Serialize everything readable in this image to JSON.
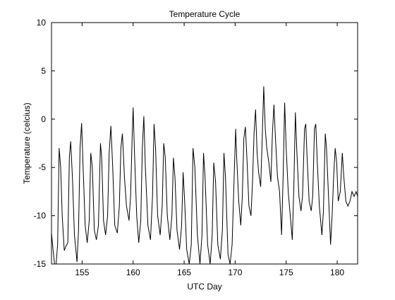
{
  "chart_data": {
    "type": "line",
    "title": "Temperature Cycle",
    "xlabel": "UTC Day",
    "ylabel": "Temperature (celcius)",
    "xlim": [
      152,
      182
    ],
    "ylim": [
      -15,
      10
    ],
    "xticks": [
      155,
      160,
      165,
      170,
      175,
      180
    ],
    "yticks": [
      -15,
      -10,
      -5,
      0,
      5,
      10
    ],
    "grid": false,
    "legend": "none",
    "series": [
      {
        "color": "#000000",
        "points": [
          [
            152.0,
            -11.8
          ],
          [
            152.15,
            -13.5
          ],
          [
            152.3,
            -15.0
          ],
          [
            152.45,
            -15.0
          ],
          [
            152.6,
            -13.0
          ],
          [
            152.75,
            -3.0
          ],
          [
            152.9,
            -5.0
          ],
          [
            153.05,
            -10.0
          ],
          [
            153.25,
            -13.6
          ],
          [
            153.4,
            -13.2
          ],
          [
            153.6,
            -12.8
          ],
          [
            153.75,
            -4.0
          ],
          [
            153.88,
            -2.3
          ],
          [
            154.05,
            -6.0
          ],
          [
            154.25,
            -12.0
          ],
          [
            154.5,
            -14.8
          ],
          [
            154.65,
            -11.5
          ],
          [
            154.8,
            -3.0
          ],
          [
            154.95,
            -0.4
          ],
          [
            155.1,
            -5.0
          ],
          [
            155.3,
            -11.0
          ],
          [
            155.5,
            -12.8
          ],
          [
            155.7,
            -10.5
          ],
          [
            155.85,
            -3.5
          ],
          [
            156.0,
            -5.0
          ],
          [
            156.2,
            -11.5
          ],
          [
            156.4,
            -12.5
          ],
          [
            156.6,
            -11.0
          ],
          [
            156.8,
            -2.5
          ],
          [
            156.92,
            -4.0
          ],
          [
            157.1,
            -10.5
          ],
          [
            157.3,
            -12.0
          ],
          [
            157.5,
            -10.0
          ],
          [
            157.65,
            -3.5
          ],
          [
            157.82,
            -0.7
          ],
          [
            158.0,
            -5.0
          ],
          [
            158.2,
            -11.0
          ],
          [
            158.45,
            -11.8
          ],
          [
            158.65,
            -9.0
          ],
          [
            158.8,
            -3.0
          ],
          [
            158.95,
            -1.5
          ],
          [
            159.15,
            -6.0
          ],
          [
            159.35,
            -9.0
          ],
          [
            159.6,
            -10.5
          ],
          [
            159.75,
            -8.0
          ],
          [
            159.9,
            -2.0
          ],
          [
            160.0,
            1.2
          ],
          [
            160.15,
            -4.0
          ],
          [
            160.35,
            -10.0
          ],
          [
            160.55,
            -12.8
          ],
          [
            160.75,
            -10.5
          ],
          [
            160.9,
            -3.0
          ],
          [
            161.05,
            0.3
          ],
          [
            161.2,
            -5.0
          ],
          [
            161.45,
            -11.0
          ],
          [
            161.7,
            -12.5
          ],
          [
            161.9,
            -8.0
          ],
          [
            162.05,
            -0.5
          ],
          [
            162.2,
            -3.0
          ],
          [
            162.4,
            -10.0
          ],
          [
            162.65,
            -12.0
          ],
          [
            162.85,
            -9.0
          ],
          [
            163.0,
            -2.5
          ],
          [
            163.15,
            -4.0
          ],
          [
            163.35,
            -10.0
          ],
          [
            163.6,
            -12.5
          ],
          [
            163.8,
            -10.0
          ],
          [
            163.95,
            -4.0
          ],
          [
            164.1,
            -6.0
          ],
          [
            164.3,
            -11.5
          ],
          [
            164.55,
            -13.5
          ],
          [
            164.75,
            -11.0
          ],
          [
            164.9,
            -5.5
          ],
          [
            165.05,
            -8.5
          ],
          [
            165.25,
            -13.5
          ],
          [
            165.5,
            -15.0
          ],
          [
            165.7,
            -13.0
          ],
          [
            165.87,
            -3.0
          ],
          [
            166.05,
            -5.0
          ],
          [
            166.3,
            -12.0
          ],
          [
            166.55,
            -15.0
          ],
          [
            166.75,
            -12.0
          ],
          [
            166.9,
            -3.5
          ],
          [
            167.05,
            -6.0
          ],
          [
            167.3,
            -13.0
          ],
          [
            167.55,
            -15.0
          ],
          [
            167.75,
            -12.0
          ],
          [
            167.9,
            -4.5
          ],
          [
            168.08,
            -6.5
          ],
          [
            168.3,
            -13.0
          ],
          [
            168.55,
            -14.5
          ],
          [
            168.75,
            -11.5
          ],
          [
            168.9,
            -3.5
          ],
          [
            169.05,
            -6.0
          ],
          [
            169.3,
            -14.0
          ],
          [
            169.5,
            -15.0
          ],
          [
            169.7,
            -13.0
          ],
          [
            169.9,
            -6.0
          ],
          [
            170.05,
            -1.0
          ],
          [
            170.15,
            -4.0
          ],
          [
            170.35,
            -8.5
          ],
          [
            170.55,
            -11.0
          ],
          [
            170.7,
            -8.0
          ],
          [
            170.85,
            -2.0
          ],
          [
            171.0,
            -0.8
          ],
          [
            171.15,
            -4.0
          ],
          [
            171.35,
            -9.0
          ],
          [
            171.55,
            -10.0
          ],
          [
            171.7,
            -6.5
          ],
          [
            171.85,
            -1.5
          ],
          [
            172.0,
            1.0
          ],
          [
            172.15,
            -3.5
          ],
          [
            172.3,
            -5.5
          ],
          [
            172.5,
            -7.0
          ],
          [
            172.65,
            -2.0
          ],
          [
            172.8,
            3.4
          ],
          [
            172.95,
            -1.0
          ],
          [
            173.1,
            -3.0
          ],
          [
            173.3,
            -4.5
          ],
          [
            173.5,
            -6.5
          ],
          [
            173.65,
            -1.5
          ],
          [
            173.8,
            1.5
          ],
          [
            173.95,
            -2.0
          ],
          [
            174.15,
            -6.0
          ],
          [
            174.35,
            -7.5
          ],
          [
            174.55,
            -12.0
          ],
          [
            174.7,
            -6.0
          ],
          [
            174.85,
            1.7
          ],
          [
            175.0,
            -3.0
          ],
          [
            175.2,
            -7.5
          ],
          [
            175.4,
            -10.0
          ],
          [
            175.6,
            -12.5
          ],
          [
            175.75,
            -7.0
          ],
          [
            175.9,
            0.7
          ],
          [
            176.05,
            -3.5
          ],
          [
            176.25,
            -8.0
          ],
          [
            176.45,
            -9.5
          ],
          [
            176.6,
            -8.0
          ],
          [
            176.8,
            -1.0
          ],
          [
            176.92,
            -0.5
          ],
          [
            177.05,
            -4.0
          ],
          [
            177.25,
            -8.5
          ],
          [
            177.45,
            -9.5
          ],
          [
            177.6,
            -8.0
          ],
          [
            177.77,
            -1.0
          ],
          [
            177.9,
            -0.5
          ],
          [
            178.05,
            -4.5
          ],
          [
            178.25,
            -9.0
          ],
          [
            178.5,
            -12.0
          ],
          [
            178.65,
            -9.5
          ],
          [
            178.83,
            -1.5
          ],
          [
            178.95,
            -3.0
          ],
          [
            179.15,
            -8.0
          ],
          [
            179.35,
            -13.0
          ],
          [
            179.5,
            -10.0
          ],
          [
            179.65,
            -6.0
          ],
          [
            179.8,
            -3.0
          ],
          [
            179.95,
            -4.5
          ],
          [
            180.1,
            -8.5
          ],
          [
            180.3,
            -7.5
          ],
          [
            180.5,
            -3.5
          ],
          [
            180.65,
            -6.0
          ],
          [
            180.85,
            -8.5
          ],
          [
            181.05,
            -9.0
          ],
          [
            181.25,
            -8.5
          ],
          [
            181.45,
            -7.5
          ],
          [
            181.65,
            -8.0
          ],
          [
            181.85,
            -7.5
          ],
          [
            182.0,
            -8.0
          ]
        ]
      }
    ]
  }
}
